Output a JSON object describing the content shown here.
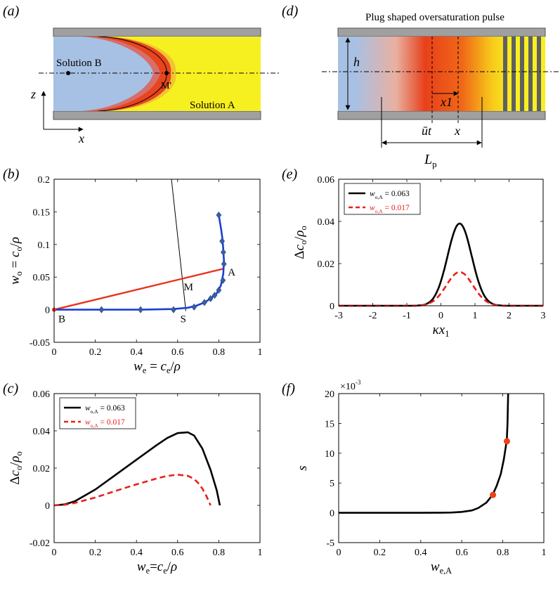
{
  "panels": {
    "a": {
      "label": "(a)",
      "solution_b": "Solution B",
      "solution_a": "Solution A",
      "point_m": "M'",
      "axis_z": "z",
      "axis_x": "x",
      "colors": {
        "blue": "#a7c1e4",
        "yellow": "#f7f020",
        "red": "#e8441e",
        "wall": "#a0a0a0"
      }
    },
    "d": {
      "label": "(d)",
      "title": "Plug shaped oversaturation pulse",
      "h": "h",
      "x1": "x1",
      "ut": "ūt",
      "x": "x",
      "lp": "L",
      "lp_sub": "p"
    },
    "b": {
      "label": "(b)",
      "point_a": "A",
      "point_b": "B",
      "point_m": "M",
      "point_s": "S"
    },
    "c": {
      "label": "(c)"
    },
    "e": {
      "label": "(e)"
    },
    "f": {
      "label": "(f)"
    }
  },
  "chart_data": [
    {
      "id": "b",
      "type": "line",
      "title": "",
      "xlabel": "w_e = c_e/ρ",
      "ylabel": "w_o = c_o/ρ",
      "xlim": [
        0,
        1
      ],
      "ylim": [
        -0.05,
        0.2
      ],
      "xticks": [
        "0",
        "0.2",
        "0.4",
        "0.6",
        "0.8",
        "1"
      ],
      "yticks": [
        "-0.05",
        "0",
        "0.05",
        "0.1",
        "0.15",
        "0.2"
      ],
      "series": [
        {
          "name": "binodal",
          "color": "#1a3fd6",
          "x": [
            0,
            0.1,
            0.23,
            0.42,
            0.58,
            0.65,
            0.69,
            0.73,
            0.76,
            0.79,
            0.81,
            0.822,
            0.825,
            0.822,
            0.818,
            0.812,
            0.805,
            0.8
          ],
          "y": [
            0,
            0,
            0,
            0,
            0.001,
            0.003,
            0.006,
            0.011,
            0.017,
            0.025,
            0.037,
            0.055,
            0.075,
            0.092,
            0.108,
            0.122,
            0.135,
            0.145
          ]
        },
        {
          "name": "markers",
          "color": "#3a5fa0",
          "x": [
            0.23,
            0.42,
            0.58,
            0.68,
            0.73,
            0.76,
            0.78,
            0.8,
            0.82,
            0.825,
            0.822,
            0.816,
            0.8
          ],
          "y": [
            0,
            0,
            0,
            0.004,
            0.011,
            0.017,
            0.022,
            0.03,
            0.045,
            0.07,
            0.088,
            0.105,
            0.145
          ]
        },
        {
          "name": "tie line",
          "color": "#e8331c",
          "x": [
            0,
            0.826
          ],
          "y": [
            0,
            0.063
          ]
        },
        {
          "name": "dilution line",
          "color": "#000000",
          "x": [
            0.57,
            0.64
          ],
          "y": [
            0.2,
            -0.002
          ]
        }
      ]
    },
    {
      "id": "c",
      "type": "line",
      "xlabel": "w_e = c_e/ρ",
      "ylabel": "Δc_o/ρ_o",
      "xlim": [
        0,
        1
      ],
      "ylim": [
        -0.02,
        0.06
      ],
      "xticks": [
        "0",
        "0.2",
        "0.4",
        "0.6",
        "0.8",
        "1"
      ],
      "yticks": [
        "-0.02",
        "0",
        "0.02",
        "0.04",
        "0.06"
      ],
      "legend": [
        "w_o,A = 0.063",
        "w_o,A = 0.017"
      ],
      "legend_placement": "top-left",
      "series": [
        {
          "name": "w_o,A = 0.063",
          "color": "#000000",
          "dash": false,
          "x": [
            0,
            0.05,
            0.1,
            0.2,
            0.3,
            0.4,
            0.5,
            0.55,
            0.6,
            0.65,
            0.68,
            0.72,
            0.76,
            0.79,
            0.805
          ],
          "y": [
            0,
            0.0005,
            0.0022,
            0.0085,
            0.0165,
            0.0245,
            0.0325,
            0.0362,
            0.0388,
            0.0392,
            0.0375,
            0.0305,
            0.019,
            0.008,
            0
          ]
        },
        {
          "name": "w_o,A = 0.017",
          "color": "#e8201c",
          "dash": true,
          "x": [
            0,
            0.05,
            0.1,
            0.2,
            0.3,
            0.4,
            0.5,
            0.55,
            0.6,
            0.65,
            0.68,
            0.7,
            0.72,
            0.74,
            0.76
          ],
          "y": [
            0,
            0.0003,
            0.0013,
            0.0042,
            0.0078,
            0.0113,
            0.0145,
            0.0158,
            0.0165,
            0.0158,
            0.0142,
            0.012,
            0.009,
            0.005,
            0
          ]
        }
      ]
    },
    {
      "id": "e",
      "type": "line",
      "xlabel": "κx_1",
      "ylabel": "Δc_o/ρ_o",
      "xlim": [
        -3,
        3
      ],
      "ylim": [
        0,
        0.06
      ],
      "xticks": [
        "-3",
        "-2",
        "-1",
        "0",
        "1",
        "2",
        "3"
      ],
      "yticks": [
        "0",
        "0.02",
        "0.04",
        "0.06"
      ],
      "legend": [
        "w_o,A = 0.063",
        "w_o,A = 0.017"
      ],
      "legend_placement": "top-left",
      "series": [
        {
          "name": "w_o,A = 0.063",
          "color": "#000000",
          "dash": false,
          "peak": 0.039,
          "center": 0.55,
          "width": 0.5
        },
        {
          "name": "w_o,A = 0.017",
          "color": "#e8201c",
          "dash": true,
          "peak": 0.016,
          "center": 0.55,
          "width": 0.55
        }
      ]
    },
    {
      "id": "f",
      "type": "line",
      "xlabel": "w_e,A",
      "ylabel": "s",
      "multiplier": "×10",
      "multiplier_exp": "-3",
      "xlim": [
        0,
        1
      ],
      "ylim": [
        -5,
        20
      ],
      "xticks": [
        "0",
        "0.2",
        "0.4",
        "0.6",
        "0.8",
        "1"
      ],
      "yticks": [
        "-5",
        "0",
        "5",
        "10",
        "15",
        "20"
      ],
      "series": [
        {
          "name": "s",
          "color": "#000000",
          "x": [
            0,
            0.2,
            0.4,
            0.5,
            0.55,
            0.6,
            0.65,
            0.68,
            0.72,
            0.75,
            0.77,
            0.79,
            0.805,
            0.815,
            0.82,
            0.823,
            0.826
          ],
          "y": [
            0,
            0,
            0,
            0.02,
            0.05,
            0.15,
            0.4,
            0.8,
            1.7,
            3.0,
            4.5,
            6.5,
            9.0,
            11.2,
            12.5,
            15,
            20
          ]
        },
        {
          "name": "points",
          "color": "#f04018",
          "x": [
            0.752,
            0.82
          ],
          "y": [
            3.0,
            12.0
          ]
        }
      ]
    }
  ]
}
